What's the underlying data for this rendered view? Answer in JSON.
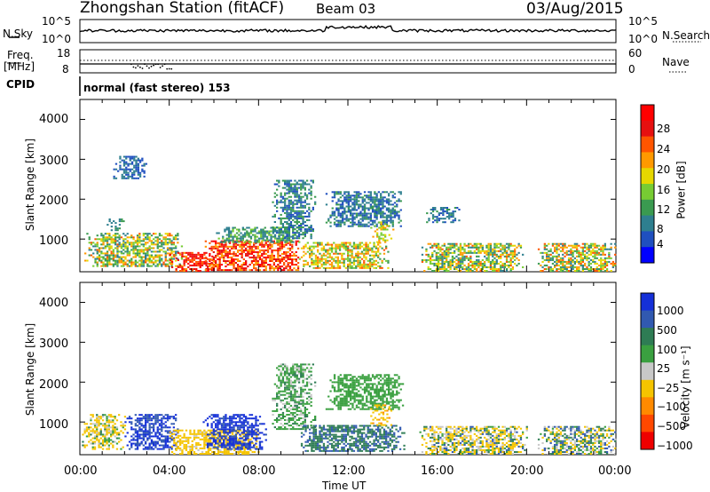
{
  "header": {
    "station": "Zhongshan Station (fitACF)",
    "beam": "Beam 03",
    "date": "03/Aug/2015"
  },
  "top_panels": {
    "nsky_label": "N.Sky",
    "nsky_ticks": [
      "10^5",
      "10^0"
    ],
    "nsearch_label": "N.Search",
    "nsearch_ticks": [
      "10^5",
      "10^0"
    ],
    "freq_label_line1": "Freq.",
    "freq_label_line2": "[MHz]",
    "freq_ticks": [
      "18",
      "8"
    ],
    "nave_label": "Nave",
    "nave_ticks": [
      "60",
      "0"
    ],
    "cpid_label": "CPID",
    "cpid_value": "normal (fast stereo) 153"
  },
  "colors": {
    "power_scale": [
      "#0000ff",
      "#1f4fbf",
      "#2e7f8f",
      "#3a9a50",
      "#77cc33",
      "#e6d700",
      "#ff9900",
      "#ff5500",
      "#e61010",
      "#ff0000"
    ],
    "velocity_scale": [
      "#1530d8",
      "#3159b0",
      "#2e7c54",
      "#3aa040",
      "#c8c8c8",
      "#f5c400",
      "#ff8a00",
      "#ff4800",
      "#ee0000"
    ],
    "grey_ground": "#c8c8c8"
  },
  "chart_data": [
    {
      "type": "heatmap",
      "name": "power",
      "ylabel": "Slant Range [km]",
      "yticks": [
        "4000",
        "3000",
        "2000",
        "1000"
      ],
      "ylim": [
        180,
        4500
      ],
      "colorbar_label": "Power [dB]",
      "colorbar_ticks": [
        "28",
        "24",
        "20",
        "16",
        "12",
        "8",
        "4"
      ],
      "colorbar_range": [
        0,
        30
      ],
      "regions": [
        {
          "t": [
            0.2,
            4.6
          ],
          "r": [
            300,
            1150
          ],
          "v": [
            6,
            22
          ]
        },
        {
          "t": [
            1.2,
            2.0
          ],
          "r": [
            1200,
            1500
          ],
          "v": [
            6,
            10
          ]
        },
        {
          "t": [
            1.4,
            3.0
          ],
          "r": [
            2500,
            3050
          ],
          "v": [
            4,
            8
          ]
        },
        {
          "t": [
            4.0,
            6.0
          ],
          "r": [
            180,
            650
          ],
          "v": [
            20,
            30
          ]
        },
        {
          "t": [
            5.5,
            9.8
          ],
          "r": [
            200,
            950
          ],
          "v": [
            18,
            30
          ]
        },
        {
          "t": [
            6.0,
            9.8
          ],
          "r": [
            900,
            1300
          ],
          "v": [
            6,
            14
          ]
        },
        {
          "t": [
            8.6,
            10.5
          ],
          "r": [
            1000,
            2450
          ],
          "v": [
            4,
            12
          ]
        },
        {
          "t": [
            9.8,
            13.8
          ],
          "r": [
            250,
            900
          ],
          "v": [
            10,
            22
          ]
        },
        {
          "t": [
            11.0,
            14.5
          ],
          "r": [
            1300,
            2200
          ],
          "v": [
            4,
            10
          ]
        },
        {
          "t": [
            13.0,
            14.0
          ],
          "r": [
            900,
            1400
          ],
          "v": [
            12,
            20
          ]
        },
        {
          "t": [
            15.2,
            19.8
          ],
          "r": [
            180,
            900
          ],
          "v": [
            6,
            22
          ]
        },
        {
          "t": [
            15.5,
            17.0
          ],
          "r": [
            1400,
            1800
          ],
          "v": [
            4,
            10
          ]
        },
        {
          "t": [
            20.5,
            24.0
          ],
          "r": [
            180,
            900
          ],
          "v": [
            6,
            24
          ]
        }
      ]
    },
    {
      "type": "heatmap",
      "name": "velocity",
      "ylabel": "Slant Range [km]",
      "yticks": [
        "4000",
        "3000",
        "2000",
        "1000"
      ],
      "ylim": [
        180,
        4500
      ],
      "colorbar_label": "Velocity [m s⁻¹]",
      "colorbar_ticks": [
        "1000",
        "500",
        "100",
        "25",
        "−25",
        "−100",
        "−500",
        "−1000"
      ],
      "colorbar_range": [
        -1000,
        1000
      ],
      "regions": [
        {
          "t": [
            0.0,
            2.0
          ],
          "r": [
            300,
            1200
          ],
          "v": [
            -300,
            50
          ]
        },
        {
          "t": [
            2.0,
            4.4
          ],
          "r": [
            300,
            1200
          ],
          "v": [
            100,
            900
          ]
        },
        {
          "t": [
            4.0,
            8.0
          ],
          "r": [
            180,
            800
          ],
          "v": [
            -500,
            -50
          ]
        },
        {
          "t": [
            5.5,
            8.3
          ],
          "r": [
            300,
            1200
          ],
          "v": [
            300,
            1000
          ]
        },
        {
          "t": [
            8.6,
            10.5
          ],
          "r": [
            800,
            2450
          ],
          "v": [
            -40,
            40
          ]
        },
        {
          "t": [
            9.8,
            14.5
          ],
          "r": [
            250,
            900
          ],
          "v": [
            30,
            150
          ]
        },
        {
          "t": [
            11.0,
            14.5
          ],
          "r": [
            1300,
            2200
          ],
          "v": [
            -25,
            25
          ]
        },
        {
          "t": [
            13.0,
            14.0
          ],
          "r": [
            900,
            1400
          ],
          "v": [
            -600,
            -100
          ]
        },
        {
          "t": [
            15.2,
            20.0
          ],
          "r": [
            180,
            900
          ],
          "v": [
            -300,
            150
          ]
        },
        {
          "t": [
            20.5,
            24.0
          ],
          "r": [
            180,
            900
          ],
          "v": [
            -200,
            200
          ]
        }
      ]
    }
  ],
  "x_axis": {
    "label": "Time UT",
    "ticks": [
      "00:00",
      "04:00",
      "08:00",
      "12:00",
      "16:00",
      "20:00",
      "00:00"
    ],
    "range_hours": [
      0,
      24
    ]
  }
}
